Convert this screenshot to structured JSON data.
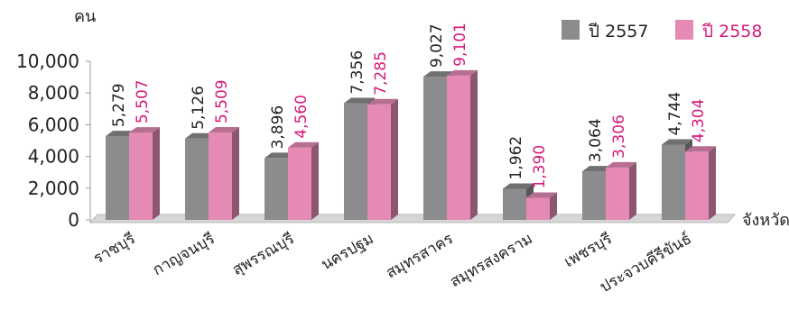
{
  "chart_data": {
    "type": "bar",
    "ylabel": "คน",
    "xlabel": "จังหวัด",
    "ylim": [
      0,
      10000
    ],
    "yticks": [
      "0",
      "2,000",
      "4,000",
      "6,000",
      "8,000",
      "10,000"
    ],
    "categories": [
      "ราชบุรี",
      "กาญจนบุรี",
      "สุพรรณบุรี",
      "นครปฐม",
      "สมุทรสาคร",
      "สมุทรสงคราม",
      "เพชรบุรี",
      "ประจวบคีรีขันธ์"
    ],
    "series": [
      {
        "name": "ปี 2557",
        "values": [
          5279,
          5126,
          3896,
          7356,
          9027,
          1962,
          3064,
          4744
        ],
        "labels": [
          "5,279",
          "5,126",
          "3,896",
          "7,356",
          "9,027",
          "1,962",
          "3,064",
          "4,744"
        ],
        "color": "#8c8c8e",
        "label_color": "#222222"
      },
      {
        "name": "ปี 2558",
        "values": [
          5507,
          5509,
          4560,
          7285,
          9101,
          1390,
          3306,
          4304
        ],
        "labels": [
          "5,507",
          "5,509",
          "4,560",
          "7,285",
          "9,101",
          "1,390",
          "3,306",
          "4,304"
        ],
        "color": "#e48ab5",
        "label_color": "#d6197a"
      }
    ],
    "legend": "top-right",
    "grid": false
  }
}
